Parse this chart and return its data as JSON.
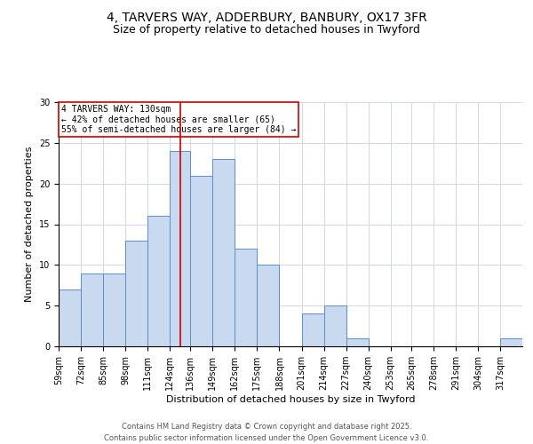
{
  "title": "4, TARVERS WAY, ADDERBURY, BANBURY, OX17 3FR",
  "subtitle": "Size of property relative to detached houses in Twyford",
  "xlabel": "Distribution of detached houses by size in Twyford",
  "ylabel": "Number of detached properties",
  "bar_labels": [
    "59sqm",
    "72sqm",
    "85sqm",
    "98sqm",
    "111sqm",
    "124sqm",
    "136sqm",
    "149sqm",
    "162sqm",
    "175sqm",
    "188sqm",
    "201sqm",
    "214sqm",
    "227sqm",
    "240sqm",
    "253sqm",
    "265sqm",
    "278sqm",
    "291sqm",
    "304sqm",
    "317sqm"
  ],
  "bar_values": [
    7,
    9,
    9,
    13,
    16,
    24,
    21,
    23,
    12,
    10,
    0,
    4,
    5,
    1,
    0,
    0,
    0,
    0,
    0,
    0,
    1
  ],
  "bin_edges": [
    59,
    72,
    85,
    98,
    111,
    124,
    136,
    149,
    162,
    175,
    188,
    201,
    214,
    227,
    240,
    253,
    265,
    278,
    291,
    304,
    317,
    330
  ],
  "bar_color": "#c9d9f0",
  "bar_edgecolor": "#5b8dd4",
  "property_line_x": 130,
  "property_line_color": "#cc0000",
  "annotation_title": "4 TARVERS WAY: 130sqm",
  "annotation_line1": "← 42% of detached houses are smaller (65)",
  "annotation_line2": "55% of semi-detached houses are larger (84) →",
  "annotation_box_edgecolor": "#cc0000",
  "ylim": [
    0,
    30
  ],
  "yticks": [
    0,
    5,
    10,
    15,
    20,
    25,
    30
  ],
  "background_color": "#ffffff",
  "footer1": "Contains HM Land Registry data © Crown copyright and database right 2025.",
  "footer2": "Contains public sector information licensed under the Open Government Licence v3.0.",
  "title_fontsize": 10,
  "subtitle_fontsize": 9,
  "xlabel_fontsize": 8,
  "ylabel_fontsize": 8,
  "tick_fontsize": 7,
  "annotation_fontsize": 7,
  "footer_fontsize": 6
}
